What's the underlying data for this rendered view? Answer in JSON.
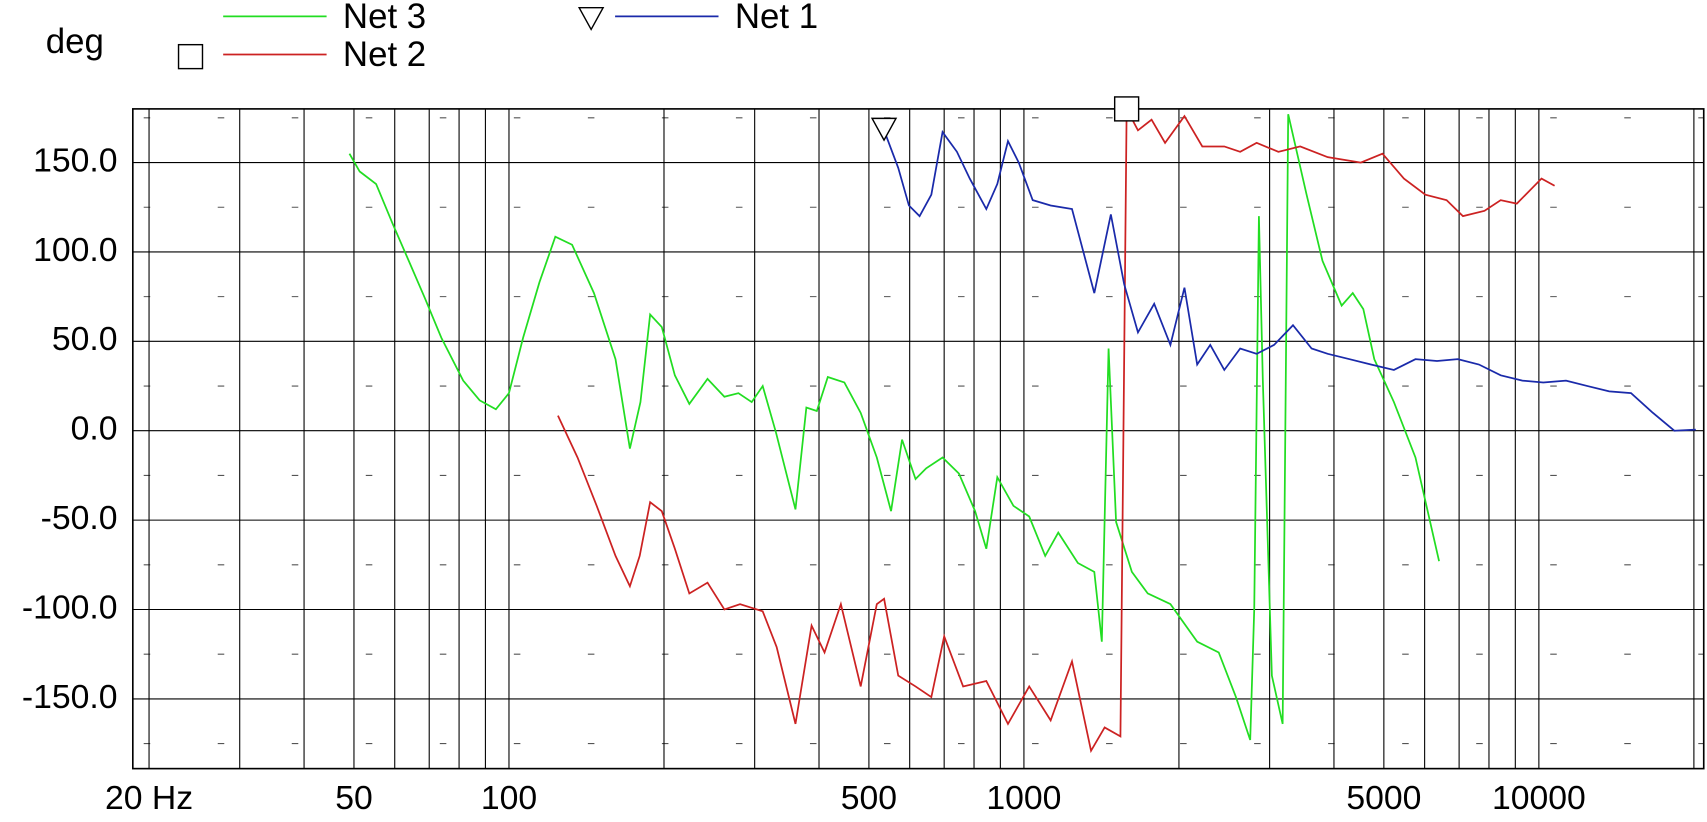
{
  "chart_data": {
    "type": "line",
    "y_label": "deg",
    "xscale": "log",
    "xlim": [
      18.6,
      20900
    ],
    "ylim": [
      -189,
      180
    ],
    "xticks": [
      {
        "value": 20,
        "label": "20 Hz"
      },
      50,
      100,
      500,
      1000,
      5000,
      10000
    ],
    "minor_xticks": [
      30,
      40,
      60,
      70,
      80,
      90,
      200,
      300,
      400,
      600,
      700,
      800,
      900,
      2000,
      3000,
      4000,
      6000,
      7000,
      8000,
      9000,
      20000
    ],
    "yticks": [
      {
        "value": 150,
        "label": "150.0"
      },
      {
        "value": 100,
        "label": "100.0"
      },
      {
        "value": 50,
        "label": "50.0"
      },
      {
        "value": 0,
        "label": "0.0"
      },
      {
        "value": -50,
        "label": "-50.0"
      },
      {
        "value": -100,
        "label": "-100.0"
      },
      {
        "value": -150,
        "label": "-150.0"
      }
    ],
    "minor_yticks": [
      175,
      125,
      75,
      25,
      -25,
      -75,
      -125,
      -175
    ],
    "grid": true,
    "series": [
      {
        "name": "Net 3",
        "color": "#22dd22",
        "x": [
          49,
          51.3,
          55.2,
          59.4,
          63.9,
          68.7,
          73.9,
          81.5,
          87.7,
          94.3,
          100,
          106.5,
          114.6,
          123,
          132.6,
          146.2,
          161,
          171.7,
          180,
          188,
          198,
          210,
          224,
          243,
          262,
          279,
          296,
          311,
          330,
          360,
          378,
          396,
          416,
          448,
          482,
          518,
          552,
          580,
          616,
          646,
          695,
          748,
          804,
          845,
          888,
          954,
          1024,
          1100,
          1166,
          1273,
          1370,
          1417,
          1460,
          1510,
          1620,
          1740,
          1925,
          2170,
          2390,
          2580,
          2750,
          2800,
          2860,
          2910,
          3030,
          3180,
          3260,
          3540,
          3800,
          4140,
          4350,
          4560,
          4790,
          5230,
          5760,
          6400
        ],
        "values": [
          155,
          145,
          138,
          116,
          95,
          74,
          52,
          28,
          17,
          12,
          21,
          52,
          83,
          108.5,
          104,
          77,
          40,
          -10,
          16,
          65,
          58,
          31,
          15,
          29,
          19,
          21,
          16,
          25,
          -1,
          -44,
          13,
          11,
          30,
          27,
          10,
          -15,
          -45,
          -5,
          -27,
          -21,
          -15,
          -24,
          -45,
          -66,
          -26,
          -42,
          -48,
          -70,
          -57,
          -74,
          -79,
          -118,
          46,
          -51,
          -79,
          -91,
          -97,
          -118,
          -124,
          -149,
          -173,
          -100,
          120,
          28,
          -137,
          -164,
          177,
          132,
          95,
          70,
          77,
          68,
          40,
          16,
          -15,
          -73
        ]
      },
      {
        "name": "Net 2",
        "color": "#cc2222",
        "marker": "square",
        "x": [
          124.5,
          135.9,
          148,
          161,
          171.7,
          179.4,
          188,
          198,
          210,
          224,
          243,
          262,
          281,
          311,
          331,
          360,
          387,
          410,
          441,
          482,
          518,
          535,
          570,
          616,
          661,
          700,
          762,
          845,
          931,
          1024,
          1127,
          1240,
          1350,
          1435,
          1540,
          1583,
          1665,
          1770,
          1880,
          2050,
          2220,
          2450,
          2630,
          2830,
          3120,
          3440,
          3890,
          4510,
          4970,
          5470,
          6020,
          6620,
          7120,
          7840,
          8430,
          9060,
          10120,
          10730
        ],
        "values": [
          8.5,
          -15,
          -42,
          -70,
          -87,
          -70,
          -40,
          -45,
          -66,
          -91,
          -85,
          -100,
          -97,
          -101,
          -121,
          -164,
          -109,
          -124,
          -97,
          -143,
          -97,
          -94,
          -137,
          -143,
          -149,
          -115,
          -143,
          -140,
          -164,
          -143,
          -162,
          -129,
          -179,
          -166,
          -171,
          180,
          168,
          174,
          161,
          176,
          159,
          159,
          156,
          161,
          156,
          159,
          153,
          150,
          155,
          141,
          132,
          129,
          120,
          123,
          129,
          127,
          141,
          137
        ]
      },
      {
        "name": "Net 1",
        "color": "#1a2aaa",
        "marker": "triangle",
        "x": [
          535,
          570,
          598,
          627,
          661,
          695,
          741,
          785,
          845,
          888,
          931,
          977,
          1040,
          1127,
          1240,
          1370,
          1475,
          1565,
          1665,
          1790,
          1925,
          2050,
          2170,
          2300,
          2450,
          2630,
          2830,
          3060,
          3330,
          3620,
          3890,
          4290,
          4720,
          5230,
          5760,
          6340,
          6960,
          7650,
          8430,
          9290,
          10200,
          11290,
          12430,
          13700,
          15100,
          16650,
          18330,
          20170
        ],
        "values": [
          168,
          147,
          126,
          120,
          132,
          167,
          156,
          141,
          124,
          138,
          162,
          150,
          129,
          126,
          124,
          77,
          121,
          82,
          55,
          71,
          48,
          80,
          37,
          48,
          34,
          46,
          43,
          48,
          59,
          46,
          43,
          40,
          37,
          34,
          40,
          39,
          40,
          37,
          31,
          28,
          27,
          28,
          25,
          22,
          21,
          10,
          0,
          0.6
        ]
      }
    ]
  }
}
